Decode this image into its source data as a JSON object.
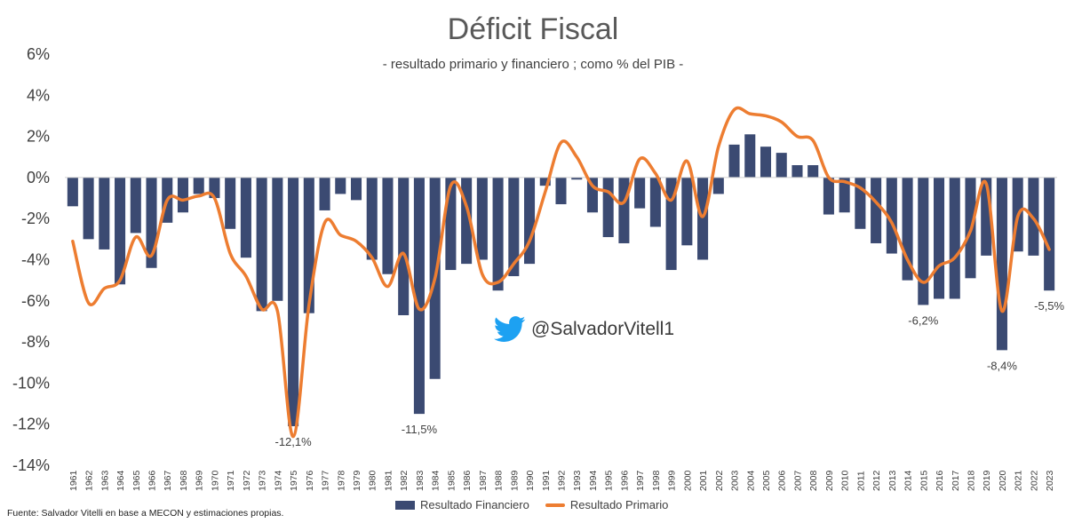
{
  "chart_data": {
    "type": "bar+line",
    "title": "Déficit Fiscal",
    "subtitle": "- resultado primario y financiero ; como % del PIB -",
    "ylim": [
      -14,
      6
    ],
    "yticks": [
      6,
      4,
      2,
      0,
      -2,
      -4,
      -6,
      -8,
      -10,
      -12,
      -14
    ],
    "ytick_labels": [
      "6%",
      "4%",
      "2%",
      "0%",
      "-2%",
      "-4%",
      "-6%",
      "-8%",
      "-10%",
      "-12%",
      "-14%"
    ],
    "categories": [
      "1961",
      "1962",
      "1963",
      "1964",
      "1965",
      "1966",
      "1967",
      "1968",
      "1969",
      "1970",
      "1971",
      "1972",
      "1973",
      "1974",
      "1975",
      "1976",
      "1977",
      "1978",
      "1979",
      "1980",
      "1981",
      "1982",
      "1983",
      "1984",
      "1985",
      "1986",
      "1987",
      "1988",
      "1989",
      "1990",
      "1991",
      "1992",
      "1993",
      "1994",
      "1995",
      "1996",
      "1997",
      "1998",
      "1999",
      "2000",
      "2001",
      "2002",
      "2003",
      "2004",
      "2005",
      "2006",
      "2007",
      "2008",
      "2009",
      "2010",
      "2011",
      "2012",
      "2013",
      "2014",
      "2015",
      "2016",
      "2017",
      "2018",
      "2019",
      "2020",
      "2021",
      "2022",
      "2023"
    ],
    "series": [
      {
        "name": "Resultado Financiero",
        "type": "bar",
        "color": "#3b4a72",
        "values": [
          -1.4,
          -3.0,
          -3.5,
          -5.2,
          -2.7,
          -4.4,
          -2.2,
          -1.7,
          -0.8,
          -1.0,
          -2.5,
          -3.9,
          -6.5,
          -6.0,
          -12.1,
          -6.6,
          -1.6,
          -0.8,
          -1.1,
          -4.0,
          -4.7,
          -6.7,
          -11.5,
          -9.8,
          -4.5,
          -4.2,
          -4.0,
          -5.5,
          -4.8,
          -4.2,
          -0.4,
          -1.3,
          -0.1,
          -1.7,
          -2.9,
          -3.2,
          -1.5,
          -2.4,
          -4.5,
          -3.3,
          -4.0,
          -0.8,
          1.6,
          2.1,
          1.5,
          1.2,
          0.6,
          0.6,
          -1.8,
          -1.7,
          -2.5,
          -3.2,
          -3.7,
          -5.0,
          -6.2,
          -5.9,
          -5.9,
          -4.9,
          -3.8,
          -8.4,
          -3.6,
          -3.8,
          -5.5
        ]
      },
      {
        "name": "Resultado Primario",
        "type": "line",
        "color": "#ed7d31",
        "values": [
          -3.1,
          -6.1,
          -5.4,
          -5.0,
          -2.9,
          -3.8,
          -1.1,
          -1.1,
          -0.9,
          -1.0,
          -3.7,
          -4.8,
          -6.4,
          -6.5,
          -12.6,
          -6.2,
          -2.2,
          -2.8,
          -3.1,
          -3.9,
          -5.3,
          -3.7,
          -6.4,
          -4.9,
          -0.4,
          -1.4,
          -4.7,
          -5.1,
          -4.2,
          -3.1,
          -0.7,
          1.7,
          1.0,
          -0.4,
          -0.7,
          -1.2,
          0.9,
          0.2,
          -1.1,
          0.8,
          -1.9,
          1.5,
          3.3,
          3.1,
          3.0,
          2.7,
          2.0,
          1.8,
          0.0,
          -0.2,
          -0.5,
          -1.2,
          -2.2,
          -4.0,
          -5.1,
          -4.3,
          -3.9,
          -2.6,
          -0.3,
          -6.5,
          -1.9,
          -2.0,
          -3.5
        ]
      }
    ],
    "annotations": [
      {
        "category": "1975",
        "value": -12.1,
        "label": "-12,1%"
      },
      {
        "category": "1983",
        "value": -11.5,
        "label": "-11,5%"
      },
      {
        "category": "2015",
        "value": -6.2,
        "label": "-6,2%"
      },
      {
        "category": "2020",
        "value": -8.4,
        "label": "-8,4%"
      },
      {
        "category": "2023",
        "value": -5.5,
        "label": "-5,5%"
      }
    ],
    "legend_position": "bottom"
  },
  "handle": "@SalvadorVitell1",
  "source": "Fuente: Salvador Vitelli en base a MECON y estimaciones propias.",
  "colors": {
    "twitter": "#1da1f2",
    "axis": "#d0d0d0"
  }
}
